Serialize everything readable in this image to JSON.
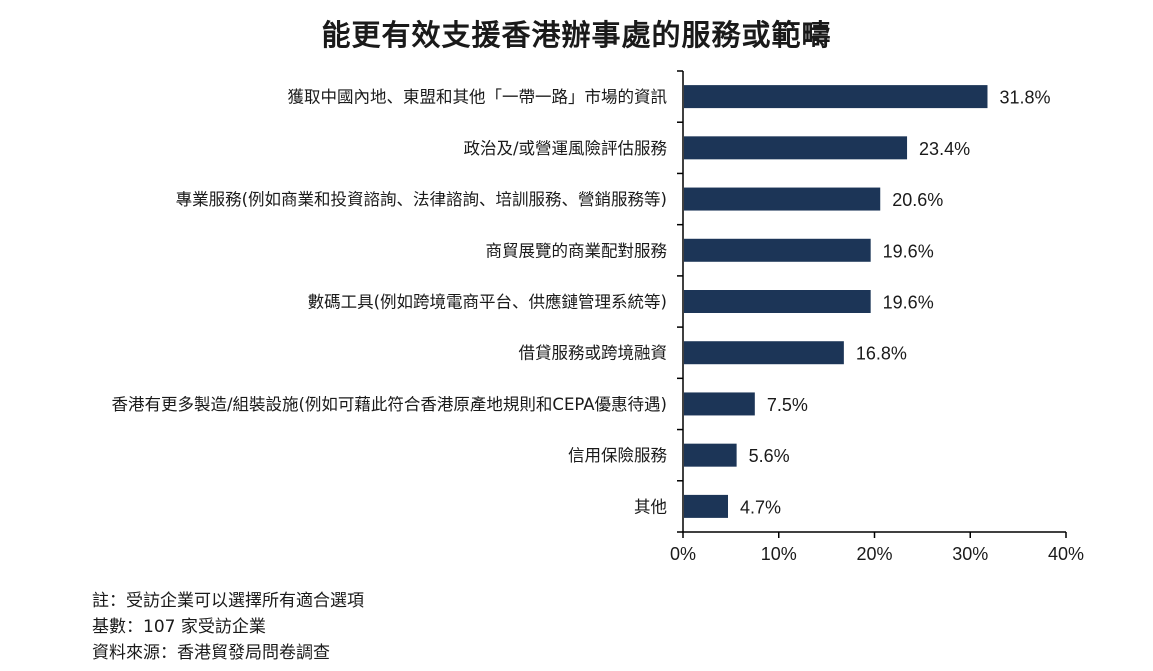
{
  "title": "能更有效支援香港辦事處的服務或範疇",
  "chart_data": {
    "type": "bar",
    "orientation": "horizontal",
    "categories": [
      "獲取中國內地、東盟和其他「一帶一路」市場的資訊",
      "政治及/或營運風險評估服務",
      "專業服務(例如商業和投資諮詢、法律諮詢、培訓服務、營銷服務等)",
      "商貿展覽的商業配對服務",
      "數碼工具(例如跨境電商平台、供應鏈管理系統等)",
      "借貸服務或跨境融資",
      "香港有更多製造/組裝設施(例如可藉此符合香港原產地規則和CEPA優惠待遇)",
      "信用保險服務",
      "其他"
    ],
    "values": [
      31.8,
      23.4,
      20.6,
      19.6,
      19.6,
      16.8,
      7.5,
      5.6,
      4.7
    ],
    "value_labels": [
      "31.8%",
      "23.4%",
      "20.6%",
      "19.6%",
      "19.6%",
      "16.8%",
      "7.5%",
      "5.6%",
      "4.7%"
    ],
    "xlim": [
      0,
      40
    ],
    "xticks": [
      "0%",
      "10%",
      "20%",
      "30%",
      "40%"
    ],
    "grid": false,
    "bar_color": "#1c3557"
  },
  "notes": [
    "註：受訪企業可以選擇所有適合選項",
    "基數：107 家受訪企業",
    "資料來源：香港貿發局問卷調查"
  ]
}
